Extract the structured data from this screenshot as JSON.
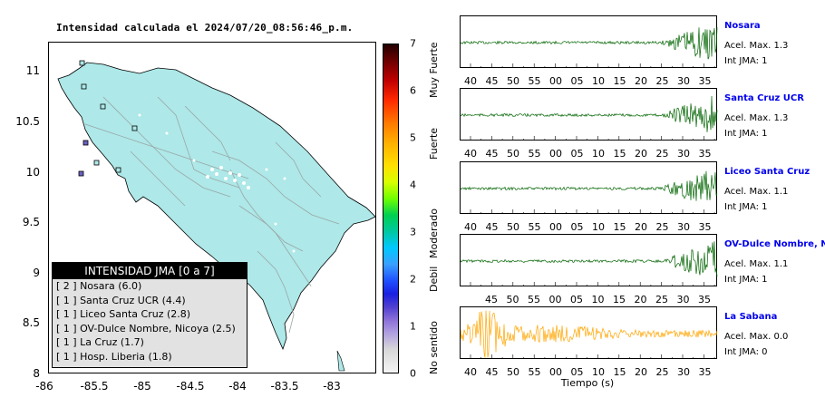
{
  "map": {
    "title": "Intensidad calculada el 2024/07/20_08:56:46_p.m.",
    "x_ticks": [
      "-86",
      "-85.5",
      "-85",
      "-84.5",
      "-84",
      "-83.5",
      "-83"
    ],
    "y_ticks": [
      "11",
      "10.5",
      "10",
      "9.5",
      "9",
      "8.5",
      "8"
    ],
    "land_color": "#aee8e8",
    "station_marker_color": "#6a60c0"
  },
  "colorbar": {
    "ticks": [
      "7",
      "6",
      "5",
      "4",
      "3",
      "2",
      "1",
      "0"
    ],
    "labels": [
      "Muy Fuerte",
      "Fuerte",
      "Moderado",
      "Debil",
      "No sentido"
    ]
  },
  "legend": {
    "title": "INTENSIDAD JMA [0 a 7]",
    "rows": [
      "[ 2 ]  Nosara (6.0)",
      "[ 1 ]  Santa Cruz UCR (4.4)",
      "[ 1 ]  Liceo Santa Cruz (2.8)",
      "[ 1 ]  OV-Dulce Nombre, Nicoya (2.5)",
      "[ 1 ]  La Cruz (1.7)",
      "[ 1 ]  Hosp. Liberia (1.8)"
    ]
  },
  "stations": [
    {
      "name": "Nosara",
      "accel": "Acel. Max. 1.3",
      "jma": "Int JMA: 1",
      "color": "#006400",
      "burst": true
    },
    {
      "name": "Santa Cruz UCR",
      "accel": "Acel. Max. 1.3",
      "jma": "Int JMA: 1",
      "color": "#006400",
      "burst": true
    },
    {
      "name": "Liceo Santa Cruz",
      "accel": "Acel. Max. 1.1",
      "jma": "Int JMA: 1",
      "color": "#006400",
      "burst": true
    },
    {
      "name": "OV-Dulce Nombre, Nico",
      "accel": "Acel. Max. 1.1",
      "jma": "Int JMA: 1",
      "color": "#006400",
      "burst": true
    },
    {
      "name": "La Sabana",
      "accel": "Acel. Max. 0.0",
      "jma": "Int JMA: 0",
      "color": "#ffa500",
      "burst": false
    }
  ],
  "time_ticks_a": [
    "40",
    "45",
    "50",
    "55",
    "00",
    "05",
    "10",
    "15",
    "20",
    "25",
    "30",
    "35"
  ],
  "time_ticks_b": [
    "40",
    "45",
    "50",
    "55",
    "00",
    "05",
    "10",
    "15",
    "20",
    "25",
    "30",
    "35"
  ],
  "time_ticks_c": [
    "40",
    "45",
    "50",
    "55",
    "00",
    "05",
    "10",
    "15",
    "20",
    "25",
    "30",
    "35"
  ],
  "time_ticks_d": [
    "45",
    "50",
    "55",
    "00",
    "05",
    "10",
    "15",
    "20",
    "25",
    "30",
    "35"
  ],
  "time_ticks_e": [
    "40",
    "45",
    "50",
    "55",
    "00",
    "05",
    "10",
    "15",
    "20",
    "25",
    "30",
    "35"
  ],
  "time_axis_label": "Tiempo (s)"
}
